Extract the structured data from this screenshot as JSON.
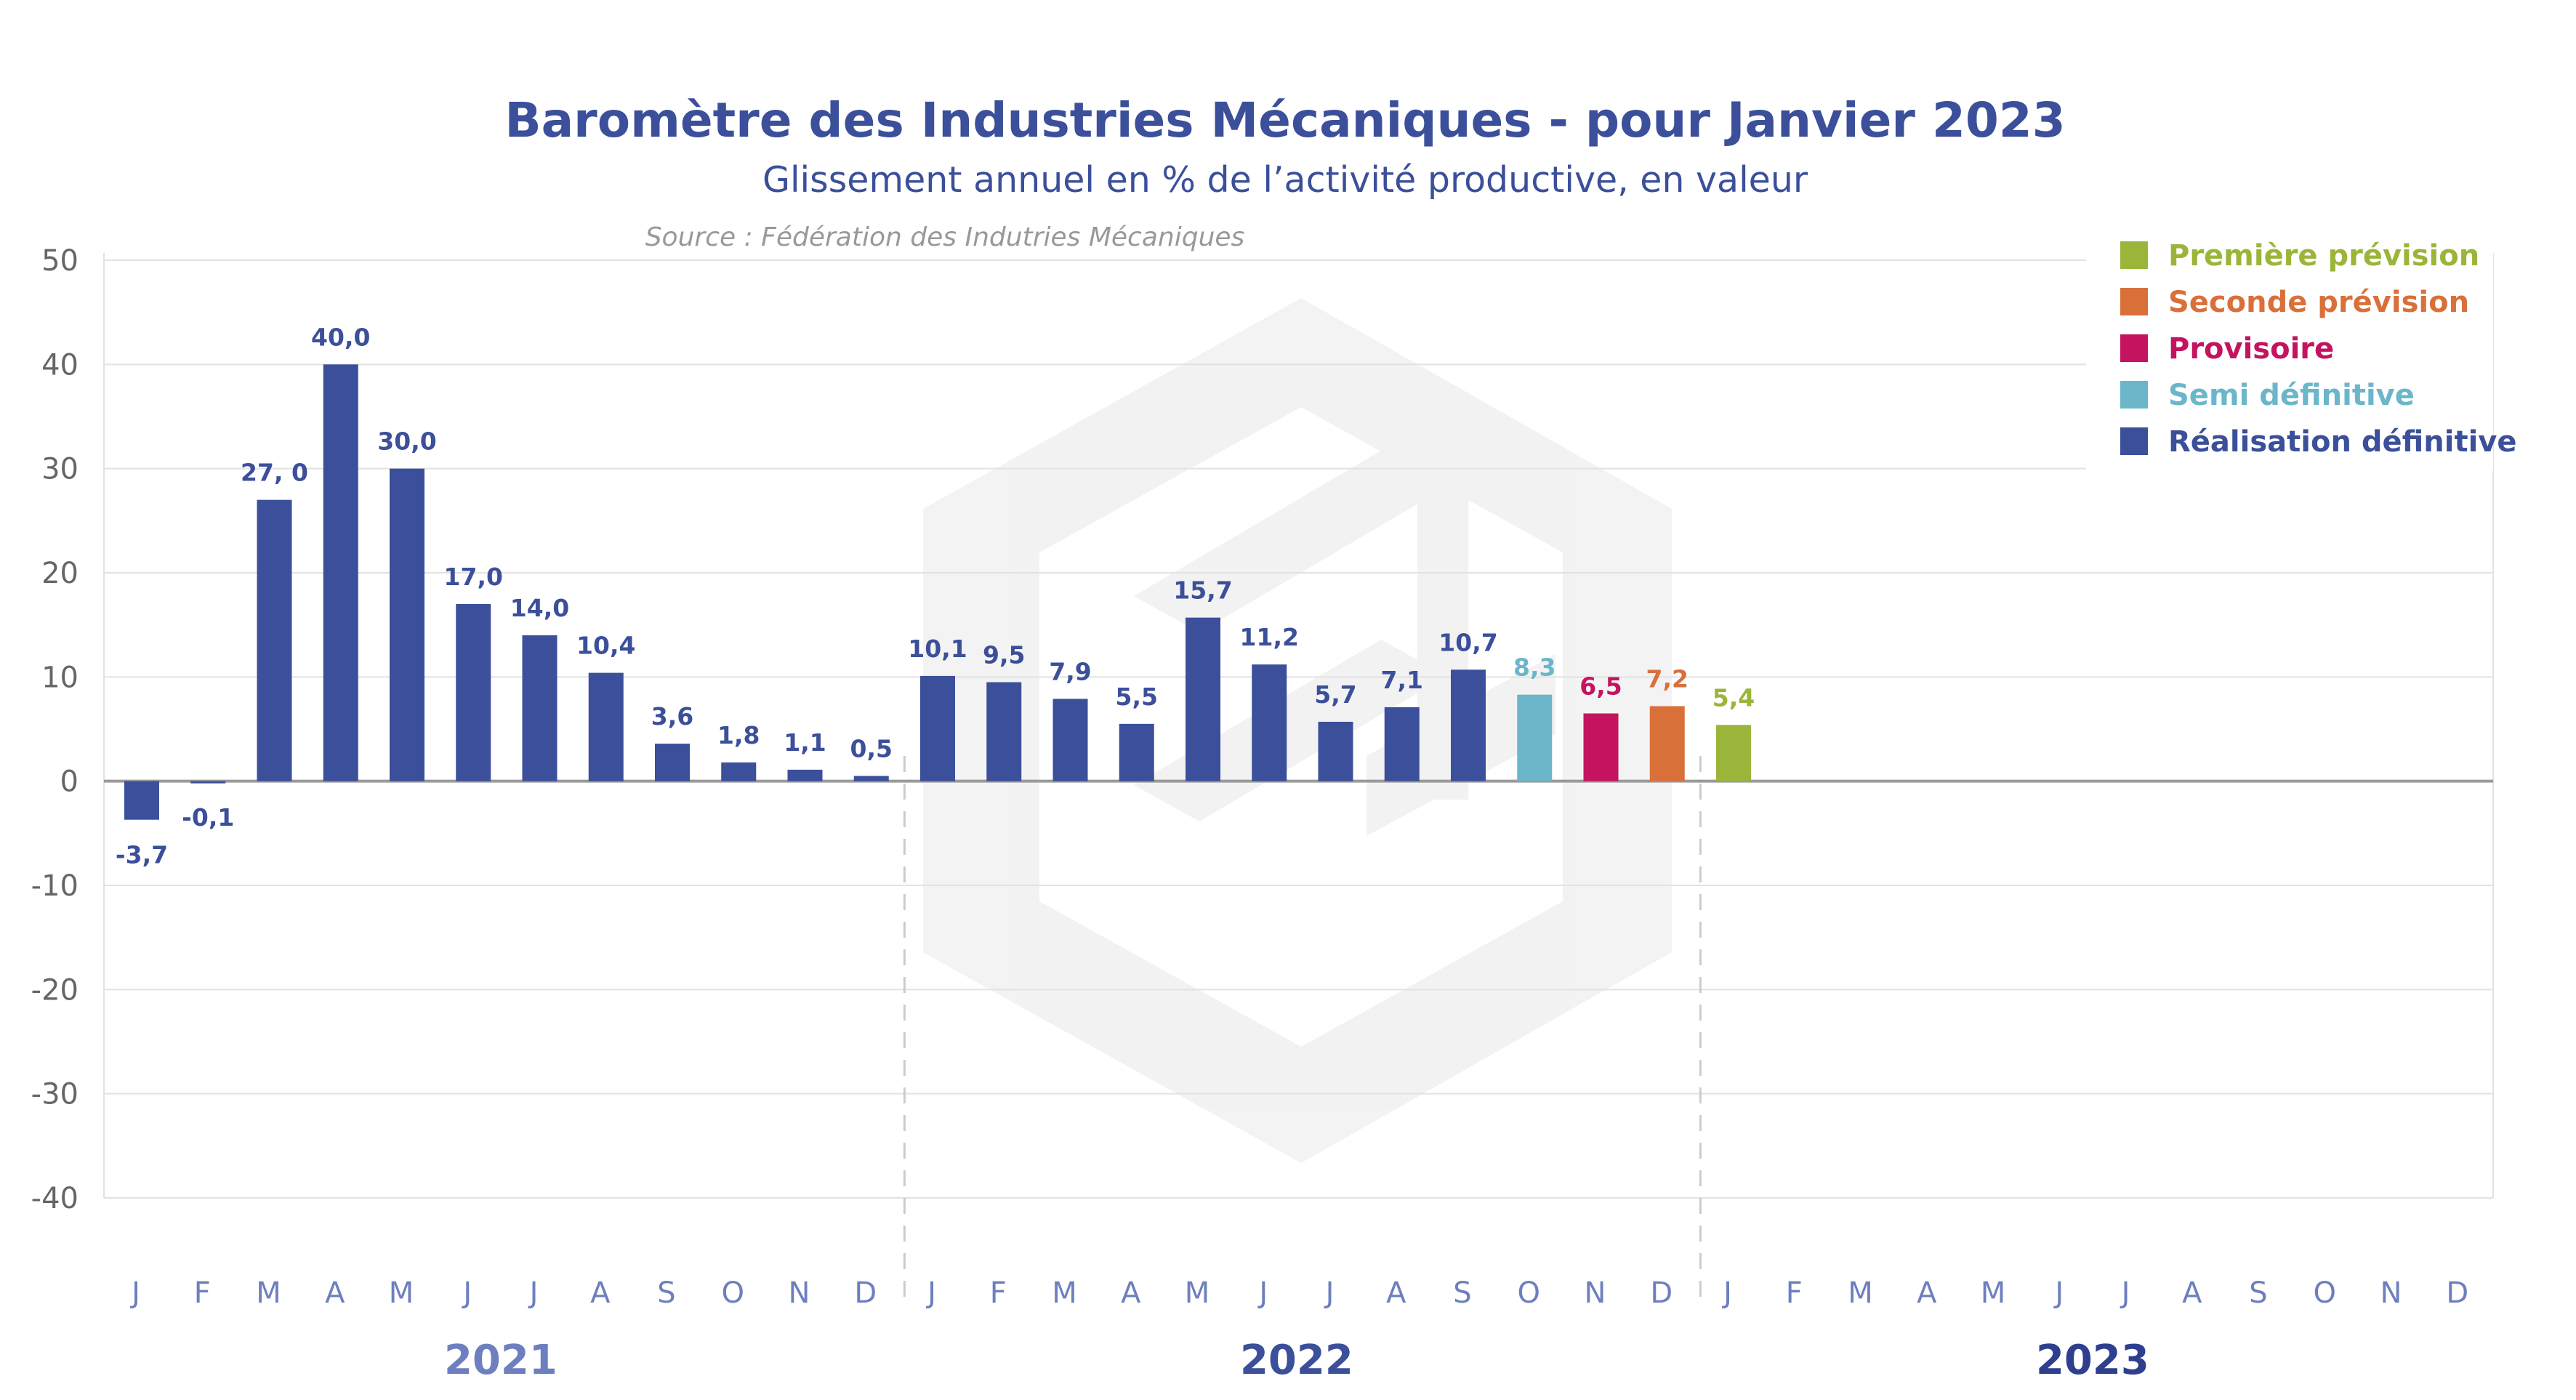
{
  "chart_data": {
    "type": "bar",
    "title": "Baromètre des Industries Mécaniques - pour Janvier 2023",
    "subtitle": "Glissement annuel en % de l’activité productive, en valeur",
    "source": "Source : Fédération des Indutries Mécaniques",
    "ylim": [
      -40,
      50
    ],
    "yticks": [
      50,
      40,
      30,
      20,
      10,
      0,
      -10,
      -20,
      -30,
      -40
    ],
    "ytick_labels": [
      "50",
      "40",
      "30",
      "20",
      "10",
      "0",
      "-10",
      "-20",
      "-30",
      "-40"
    ],
    "grid": true,
    "months": [
      "J",
      "F",
      "M",
      "A",
      "M",
      "J",
      "J",
      "A",
      "S",
      "O",
      "N",
      "D",
      "J",
      "F",
      "M",
      "A",
      "M",
      "J",
      "J",
      "A",
      "S",
      "O",
      "N",
      "D",
      "J",
      "F",
      "M",
      "A",
      "M",
      "J",
      "J",
      "A",
      "S",
      "O",
      "N",
      "D"
    ],
    "years": [
      {
        "label": "2021",
        "color": "#6d7fbf"
      },
      {
        "label": "2022",
        "color": "#3b4f9a"
      },
      {
        "label": "2023",
        "color": "#2e3f8f"
      }
    ],
    "values": [
      -3.7,
      -0.1,
      27.0,
      40.0,
      30.0,
      17.0,
      14.0,
      10.4,
      3.6,
      1.8,
      1.1,
      0.5,
      10.1,
      9.5,
      7.9,
      5.5,
      15.7,
      11.2,
      5.7,
      7.1,
      10.7,
      8.3,
      6.5,
      7.2,
      5.4,
      null,
      null,
      null,
      null,
      null,
      null,
      null,
      null,
      null,
      null,
      null
    ],
    "labels": [
      "-3,7",
      "-0,1",
      "27, 0",
      "40,0",
      "30,0",
      "17,0",
      "14,0",
      "10,4",
      "3,6",
      "1,8",
      "1,1",
      "0,5",
      "10,1",
      "9,5",
      "7,9",
      "5,5",
      "15,7",
      "11,2",
      "5,7",
      "7,1",
      "10,7",
      "8,3",
      "6,5",
      "7,2",
      "5,4",
      "",
      "",
      "",
      "",
      "",
      "",
      "",
      "",
      "",
      "",
      ""
    ],
    "status": [
      "def",
      "def",
      "def",
      "def",
      "def",
      "def",
      "def",
      "def",
      "def",
      "def",
      "def",
      "def",
      "def",
      "def",
      "def",
      "def",
      "def",
      "def",
      "def",
      "def",
      "def",
      "semi",
      "prov",
      "sec",
      "prem",
      "",
      "",
      "",
      "",
      "",
      "",
      "",
      "",
      "",
      "",
      ""
    ],
    "legend": [
      {
        "key": "prem",
        "label": "Première prévision",
        "color": "#9bb53a"
      },
      {
        "key": "sec",
        "label": "Seconde prévision",
        "color": "#d9703a"
      },
      {
        "key": "prov",
        "label": "Provisoire",
        "color": "#c4135f"
      },
      {
        "key": "semi",
        "label": "Semi définitive",
        "color": "#6bb6c9"
      },
      {
        "key": "def",
        "label": "Réalisation définitive",
        "color": "#3b4f9a"
      }
    ],
    "legend_position": "top-right"
  },
  "colors": {
    "title": "#3b4f9a",
    "subtitle": "#3b4f9a",
    "source": "#999999",
    "grid": "#e2e2e2",
    "zero": "#9a9a9a",
    "tick": "#666666",
    "month": "#6d7fbf",
    "separator": "#cccccc"
  }
}
